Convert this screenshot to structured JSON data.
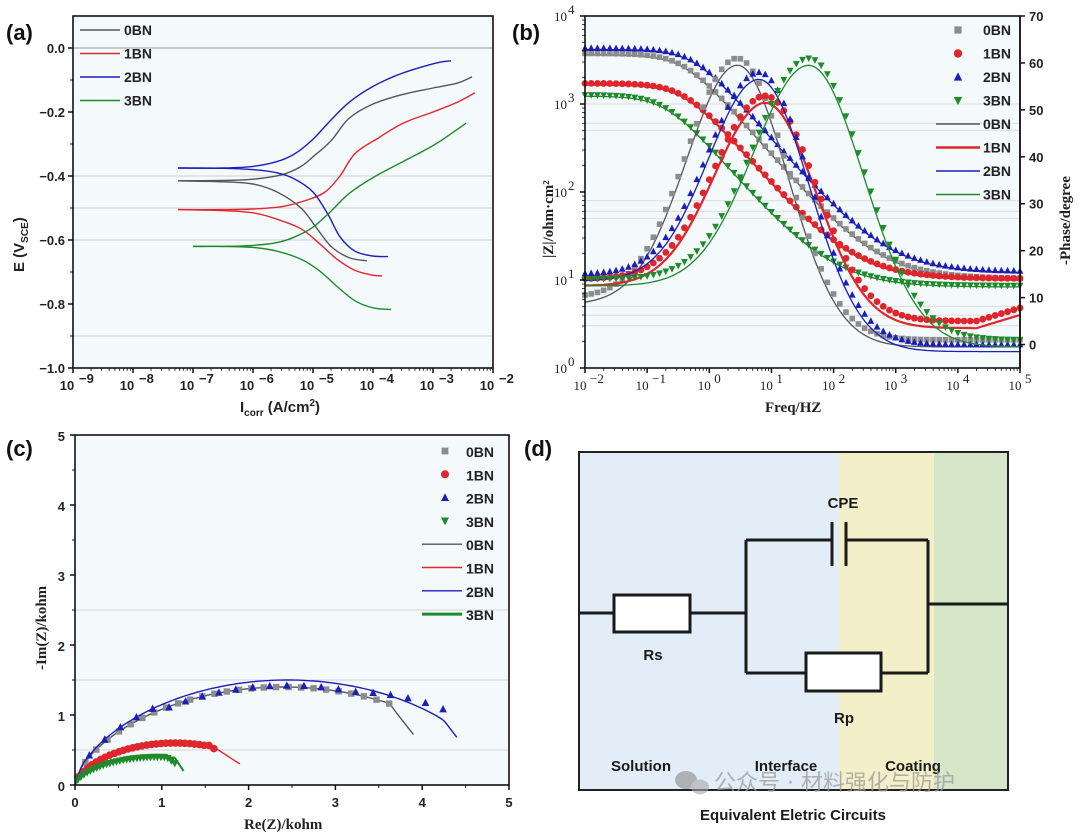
{
  "figure": {
    "panels": [
      "(a)",
      "(b)",
      "(c)",
      "(d)"
    ],
    "watermark": "公众号 · 材料强化与防护"
  },
  "colors": {
    "0BN": "#555555",
    "0BN_marker": "#8c8c8c",
    "1BN": "#e0262d",
    "2BN": "#1b1fb8",
    "3BN": "#1e8a2a"
  },
  "chart_data": [
    {
      "id": "a",
      "type": "line",
      "title": "",
      "xlabel": "I_corr (A/cm²)",
      "xlabel_main": "I",
      "xlabel_sub": "corr",
      "xlabel_rest": " (A/cm",
      "xlabel_sup": "2",
      "xlabel_end": ")",
      "ylabel": "E (V_SCE)",
      "ylabel_main": "E (V",
      "ylabel_sub": "SCE",
      "ylabel_end": ")",
      "xscale": "log",
      "xlim": [
        1e-09,
        0.01
      ],
      "ylim": [
        -1.0,
        0.1
      ],
      "xticks": [
        -9,
        -8,
        -7,
        -6,
        -5,
        -4,
        -3,
        -2
      ],
      "xtick_labels": [
        "10",
        "10",
        "10",
        "10",
        "10",
        "10",
        "10",
        "10"
      ],
      "xtick_exps": [
        "−9",
        "−8",
        "−7",
        "−6",
        "−5",
        "−4",
        "−3",
        "−2"
      ],
      "yticks": [
        0.0,
        -0.2,
        -0.4,
        -0.6,
        -0.8,
        -1.0
      ],
      "ytick_labels": [
        "0.0",
        "−0.2",
        "−0.4",
        "−0.6",
        "−0.8",
        "−1.0"
      ],
      "gridlines_y": [
        0.0,
        -0.4,
        -0.5,
        -0.6,
        -0.9
      ],
      "legend": [
        "0BN",
        "1BN",
        "2BN",
        "3BN"
      ],
      "legend_position": "top-left",
      "series": [
        {
          "name": "0BN",
          "ecorr": -0.415,
          "anodic": [
            [
              -7.25,
              -0.415
            ],
            [
              -6.5,
              -0.414
            ],
            [
              -6,
              -0.41
            ],
            [
              -5.5,
              -0.395
            ],
            [
              -5.2,
              -0.37
            ],
            [
              -5,
              -0.34
            ],
            [
              -4.7,
              -0.29
            ],
            [
              -4.4,
              -0.22
            ],
            [
              -4,
              -0.175
            ],
            [
              -3.5,
              -0.145
            ],
            [
              -3,
              -0.125
            ],
            [
              -2.6,
              -0.11
            ],
            [
              -2.35,
              -0.09
            ]
          ],
          "cathodic": [
            [
              -7.25,
              -0.415
            ],
            [
              -6.5,
              -0.418
            ],
            [
              -6,
              -0.425
            ],
            [
              -5.6,
              -0.45
            ],
            [
              -5.2,
              -0.5
            ],
            [
              -4.95,
              -0.56
            ],
            [
              -4.7,
              -0.62
            ],
            [
              -4.4,
              -0.655
            ],
            [
              -4.1,
              -0.665
            ]
          ]
        },
        {
          "name": "1BN",
          "ecorr": -0.505,
          "anodic": [
            [
              -7.25,
              -0.505
            ],
            [
              -6.5,
              -0.505
            ],
            [
              -6,
              -0.503
            ],
            [
              -5.5,
              -0.495
            ],
            [
              -5.1,
              -0.475
            ],
            [
              -4.8,
              -0.45
            ],
            [
              -4.55,
              -0.4
            ],
            [
              -4.3,
              -0.33
            ],
            [
              -3.9,
              -0.28
            ],
            [
              -3.5,
              -0.235
            ],
            [
              -3,
              -0.2
            ],
            [
              -2.6,
              -0.17
            ],
            [
              -2.3,
              -0.14
            ]
          ],
          "cathodic": [
            [
              -7.25,
              -0.505
            ],
            [
              -6.5,
              -0.508
            ],
            [
              -6,
              -0.515
            ],
            [
              -5.6,
              -0.535
            ],
            [
              -5.2,
              -0.565
            ],
            [
              -4.9,
              -0.61
            ],
            [
              -4.6,
              -0.66
            ],
            [
              -4.3,
              -0.695
            ],
            [
              -4,
              -0.71
            ],
            [
              -3.85,
              -0.712
            ]
          ]
        },
        {
          "name": "2BN",
          "ecorr": -0.375,
          "anodic": [
            [
              -7.25,
              -0.375
            ],
            [
              -6.5,
              -0.375
            ],
            [
              -6,
              -0.37
            ],
            [
              -5.6,
              -0.355
            ],
            [
              -5.3,
              -0.33
            ],
            [
              -5,
              -0.285
            ],
            [
              -4.7,
              -0.225
            ],
            [
              -4.4,
              -0.17
            ],
            [
              -4,
              -0.12
            ],
            [
              -3.6,
              -0.085
            ],
            [
              -3.2,
              -0.06
            ],
            [
              -2.9,
              -0.045
            ],
            [
              -2.7,
              -0.04
            ]
          ],
          "cathodic": [
            [
              -7.25,
              -0.375
            ],
            [
              -6.5,
              -0.376
            ],
            [
              -6,
              -0.38
            ],
            [
              -5.6,
              -0.39
            ],
            [
              -5.3,
              -0.41
            ],
            [
              -5,
              -0.45
            ],
            [
              -4.75,
              -0.52
            ],
            [
              -4.55,
              -0.59
            ],
            [
              -4.3,
              -0.635
            ],
            [
              -4,
              -0.65
            ],
            [
              -3.75,
              -0.652
            ]
          ]
        },
        {
          "name": "3BN",
          "ecorr": -0.62,
          "anodic": [
            [
              -7,
              -0.62
            ],
            [
              -6.5,
              -0.62
            ],
            [
              -6,
              -0.617
            ],
            [
              -5.6,
              -0.608
            ],
            [
              -5.3,
              -0.59
            ],
            [
              -5,
              -0.56
            ],
            [
              -4.7,
              -0.51
            ],
            [
              -4.4,
              -0.455
            ],
            [
              -4,
              -0.405
            ],
            [
              -3.5,
              -0.355
            ],
            [
              -3,
              -0.305
            ],
            [
              -2.6,
              -0.255
            ],
            [
              -2.45,
              -0.235
            ]
          ],
          "cathodic": [
            [
              -7,
              -0.62
            ],
            [
              -6.5,
              -0.62
            ],
            [
              -6,
              -0.623
            ],
            [
              -5.6,
              -0.635
            ],
            [
              -5.2,
              -0.66
            ],
            [
              -4.9,
              -0.695
            ],
            [
              -4.6,
              -0.745
            ],
            [
              -4.3,
              -0.79
            ],
            [
              -4,
              -0.812
            ],
            [
              -3.7,
              -0.817
            ]
          ]
        }
      ]
    },
    {
      "id": "b",
      "type": "scatter",
      "title": "",
      "xlabel": "Freq/HZ",
      "ylabel_left": "|Z|/ohm·cm²",
      "ylabel_right": "-Phase/degree",
      "xscale": "log",
      "yscale_left": "log",
      "xlim": [
        0.01,
        100000
      ],
      "ylim_left": [
        1,
        10000
      ],
      "ylim_right": [
        -5,
        70
      ],
      "xtick_exps": [
        "−2",
        "−1",
        "0",
        "1",
        "2",
        "3",
        "4",
        "5"
      ],
      "ytick_left_exps": [
        "0",
        "1",
        "2",
        "3",
        "4"
      ],
      "yticks_right": [
        0,
        10,
        20,
        30,
        40,
        50,
        60,
        70
      ],
      "legend": [
        "0BN",
        "1BN",
        "2BN",
        "3BN",
        "0BN",
        "1BN",
        "2BN",
        "3BN"
      ],
      "legend_markers": [
        "square",
        "circle",
        "triangle-up",
        "triangle-down",
        "line",
        "line",
        "line",
        "line"
      ],
      "legend_position": "top-right",
      "series_modulus": [
        {
          "name": "0BN",
          "logZ_low": 3.56,
          "logZ_high": 1.0,
          "fc_log": -0.4
        },
        {
          "name": "1BN",
          "logZ_low": 3.22,
          "logZ_high": 1.0,
          "fc_log": -0.4
        },
        {
          "name": "2BN",
          "logZ_low": 3.62,
          "logZ_high": 1.08,
          "fc_log": -0.25
        },
        {
          "name": "3BN",
          "logZ_low": 3.09,
          "logZ_high": 0.92,
          "fc_log": -0.7
        }
      ],
      "series_phase": [
        {
          "name": "0BN",
          "peak_deg": 61,
          "peak_log_f": 0.45,
          "low_deg": 10,
          "high_deg": 1
        },
        {
          "name": "1BN",
          "peak_deg": 53,
          "peak_log_f": 0.9,
          "low_deg": 14,
          "high_deg": 5
        },
        {
          "name": "2BN",
          "peak_deg": 58,
          "peak_log_f": 0.8,
          "low_deg": 15,
          "high_deg": 0
        },
        {
          "name": "3BN",
          "peak_deg": 61,
          "peak_log_f": 1.6,
          "low_deg": 14,
          "high_deg": 1
        }
      ]
    },
    {
      "id": "c",
      "type": "scatter",
      "title": "",
      "xlabel": "Re(Z)/kohm",
      "ylabel": "-Im(Z)/kohm",
      "xlim": [
        0,
        5
      ],
      "ylim": [
        0,
        5
      ],
      "xticks": [
        0,
        1,
        2,
        3,
        4,
        5
      ],
      "yticks": [
        0,
        1,
        2,
        3,
        4,
        5
      ],
      "gridlines_y": [
        0.5,
        1.5,
        2.5
      ],
      "legend": [
        "0BN",
        "1BN",
        "2BN",
        "3BN",
        "0BN",
        "1BN",
        "2BN",
        "3BN"
      ],
      "legend_markers": [
        "square",
        "circle",
        "triangle-up",
        "triangle-down",
        "line",
        "line",
        "line",
        "line"
      ],
      "legend_position": "top-right",
      "series": [
        {
          "name": "0BN",
          "marker": "square",
          "data_end_re": 3.62,
          "fit_end_re": 3.9,
          "arc_center_re": 2.4,
          "arc_peak_im": 1.4,
          "fit_end_im": 0.72
        },
        {
          "name": "1BN",
          "marker": "circle",
          "data_end_re": 1.6,
          "fit_end_re": 1.9,
          "arc_center_re": 1.15,
          "arc_peak_im": 0.6,
          "fit_end_im": 0.3
        },
        {
          "name": "2BN",
          "marker": "triangle-up",
          "data_end_re": 4.24,
          "fit_end_re": 4.4,
          "arc_center_re": 2.45,
          "arc_peak_im": 1.5,
          "fit_end_im": 0.68
        },
        {
          "name": "3BN",
          "marker": "triangle-down",
          "data_end_re": 1.15,
          "fit_end_re": 1.25,
          "arc_center_re": 0.95,
          "arc_peak_im": 0.4,
          "fit_end_im": 0.2
        }
      ]
    }
  ],
  "circuit": {
    "title": "Equivalent Eletric Circuits",
    "components": {
      "rs": "Rs",
      "cpe": "CPE",
      "rp": "Rp"
    },
    "regions": [
      "Solution",
      "Interface",
      "Coating"
    ],
    "region_colors": [
      "#e3edf8",
      "#f3efc8",
      "#d5e7c8"
    ]
  }
}
